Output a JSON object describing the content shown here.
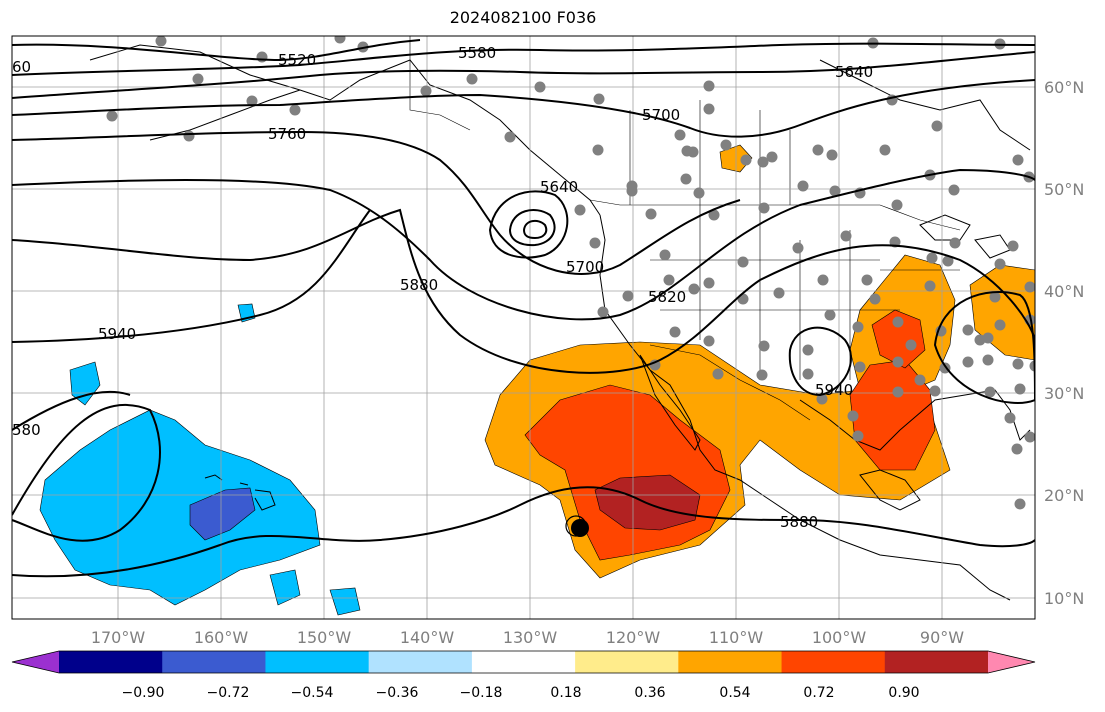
{
  "title": "2024082100 F036",
  "longitude_labels": [
    "170°W",
    "160°W",
    "150°W",
    "140°W",
    "130°W",
    "120°W",
    "110°W",
    "100°W",
    "90°W"
  ],
  "latitude_labels": [
    "60°N",
    "50°N",
    "40°N",
    "30°N",
    "20°N",
    "10°N"
  ],
  "contour_labels": [
    "5520",
    "5580",
    "5640",
    "5700",
    "5760",
    "5640",
    "5700",
    "5820",
    "5880",
    "5940",
    "5940",
    "5880",
    "580",
    "60"
  ],
  "colorbar": {
    "tick_labels": [
      "−0.90",
      "−0.72",
      "−0.54",
      "−0.36",
      "−0.18",
      "0.18",
      "0.36",
      "0.54",
      "0.72",
      "0.90"
    ],
    "colors": [
      "#9b30d0",
      "#00008b",
      "#3b5bd0",
      "#00bfff",
      "#b0e2ff",
      "#ffffff",
      "#ffec8b",
      "#ffa500",
      "#ff4500",
      "#b22222",
      "#ff88b0"
    ]
  },
  "anomaly_colors": {
    "cyan": "#00bfff",
    "blue": "#3b5bd0",
    "orange": "#ffa500",
    "red": "#ff4500",
    "dark_red": "#b22222"
  },
  "station_color": "#808080"
}
